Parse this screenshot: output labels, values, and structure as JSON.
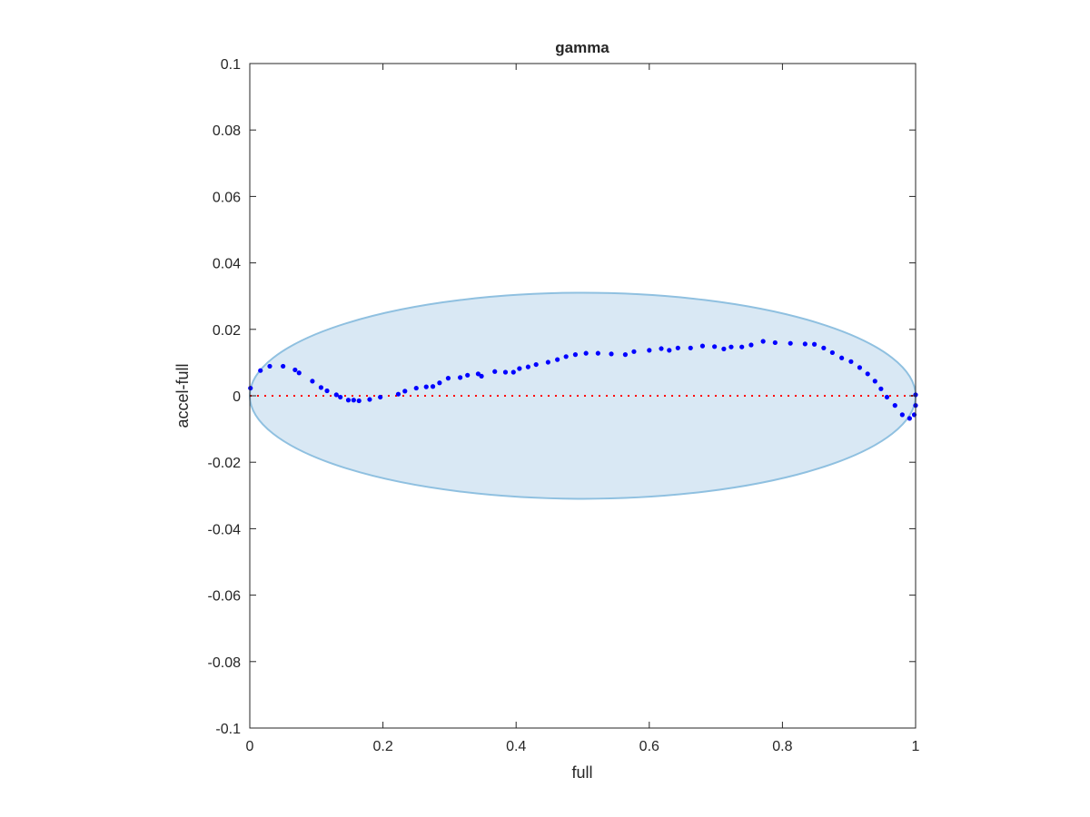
{
  "chart_data": {
    "type": "scatter",
    "title": "gamma",
    "xlabel": "full",
    "ylabel": "accel-full",
    "xlim": [
      0,
      1
    ],
    "ylim": [
      -0.1,
      0.1
    ],
    "xticks": [
      0,
      0.2,
      0.4,
      0.6,
      0.8,
      1
    ],
    "xtick_labels": [
      "0",
      "0.2",
      "0.4",
      "0.6",
      "0.8",
      "1"
    ],
    "yticks": [
      -0.1,
      -0.08,
      -0.06,
      -0.04,
      -0.02,
      0,
      0.02,
      0.04,
      0.06,
      0.08,
      0.1
    ],
    "ytick_labels": [
      "-0.1",
      "-0.08",
      "-0.06",
      "-0.04",
      "-0.02",
      "0",
      "0.02",
      "0.04",
      "0.06",
      "0.08",
      "0.1"
    ],
    "grid": false,
    "colors": {
      "points": "#0000ff",
      "zero_line": "#ff0000",
      "ellipse_fill": "#d9e8f4",
      "ellipse_edge": "#8fc0e0"
    },
    "ellipse": {
      "center": [
        0.5,
        0
      ],
      "semi_axes": [
        0.5,
        0.031
      ]
    },
    "zero_line": {
      "y": 0,
      "style": "dotted"
    },
    "series": [
      {
        "name": "gamma",
        "x": [
          0.001,
          0.016,
          0.03,
          0.05,
          0.068,
          0.074,
          0.094,
          0.107,
          0.116,
          0.13,
          0.136,
          0.148,
          0.156,
          0.164,
          0.18,
          0.196,
          0.223,
          0.233,
          0.25,
          0.265,
          0.275,
          0.285,
          0.298,
          0.316,
          0.327,
          0.343,
          0.348,
          0.368,
          0.384,
          0.396,
          0.405,
          0.418,
          0.43,
          0.448,
          0.462,
          0.475,
          0.489,
          0.505,
          0.523,
          0.543,
          0.564,
          0.577,
          0.6,
          0.618,
          0.63,
          0.643,
          0.662,
          0.68,
          0.698,
          0.712,
          0.723,
          0.739,
          0.753,
          0.771,
          0.789,
          0.812,
          0.834,
          0.848,
          0.862,
          0.875,
          0.889,
          0.903,
          0.916,
          0.928,
          0.939,
          0.948,
          0.957,
          0.969,
          0.98,
          0.991,
          0.998,
          1.0,
          1.0
        ],
        "y": [
          0.0023,
          0.0076,
          0.0089,
          0.0089,
          0.0078,
          0.0069,
          0.0044,
          0.0025,
          0.0015,
          0.0003,
          -0.0004,
          -0.0013,
          -0.0013,
          -0.0015,
          -0.0011,
          -0.0004,
          0.0005,
          0.0014,
          0.0023,
          0.0027,
          0.0028,
          0.0039,
          0.0053,
          0.0055,
          0.0062,
          0.0066,
          0.0059,
          0.0073,
          0.0071,
          0.0071,
          0.0082,
          0.0087,
          0.0094,
          0.0101,
          0.0109,
          0.0118,
          0.0124,
          0.0128,
          0.0128,
          0.0126,
          0.0124,
          0.0133,
          0.0137,
          0.0142,
          0.0137,
          0.0144,
          0.0144,
          0.015,
          0.0148,
          0.0141,
          0.0147,
          0.0147,
          0.0153,
          0.0164,
          0.016,
          0.0158,
          0.0156,
          0.0155,
          0.0144,
          0.013,
          0.0114,
          0.0103,
          0.0085,
          0.0066,
          0.0044,
          0.0021,
          -0.0004,
          -0.0029,
          -0.0057,
          -0.0068,
          -0.0057,
          -0.0029,
          0.0003
        ]
      }
    ]
  }
}
